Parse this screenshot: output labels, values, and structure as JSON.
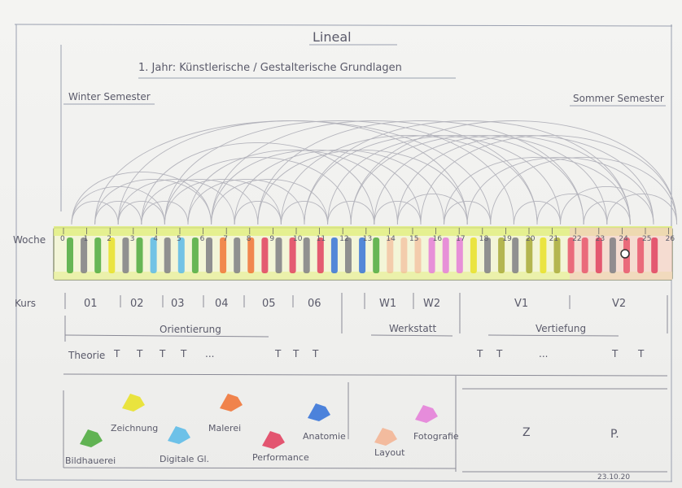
{
  "title": "Lineal",
  "subtitle": "1. Jahr:  Künstlerische / Gestalterische Grundlagen",
  "winter_label": "Winter Semester",
  "summer_label": "Sommer Semester",
  "row_labels": {
    "woche": "Woche",
    "kurs": "Kurs"
  },
  "weeks": [
    "0",
    "1",
    "2",
    "3",
    "4",
    "5",
    "6",
    "7",
    "8",
    "9",
    "10",
    "11",
    "12",
    "13",
    "14",
    "15",
    "16",
    "17",
    "18",
    "19",
    "20",
    "21",
    "22",
    "23",
    "24",
    "25",
    "26"
  ],
  "courses": [
    "01",
    "02",
    "03",
    "04",
    "05",
    "06",
    "W1",
    "W2",
    "V1",
    "V2"
  ],
  "phases": [
    "Orientierung",
    "Werkstatt",
    "Vertiefung"
  ],
  "theorie": {
    "label": "Theorie",
    "marks": [
      "T",
      "T",
      "T",
      "T",
      "...",
      "T",
      "T",
      "T",
      "T",
      "T",
      "...",
      "T",
      "T"
    ]
  },
  "legend": [
    {
      "label": "Zeichnung",
      "color": "#e8e020"
    },
    {
      "label": "Malerei",
      "color": "#f07030"
    },
    {
      "label": "Anatomie",
      "color": "#2f6fd8"
    },
    {
      "label": "Fotografie",
      "color": "#e47ad8"
    },
    {
      "label": "Bildhauerei",
      "color": "#48a838"
    },
    {
      "label": "Digitale Gl.",
      "color": "#56b8e8"
    },
    {
      "label": "Performance",
      "color": "#e03a5a"
    },
    {
      "label": "Layout",
      "color": "#f3b190"
    }
  ],
  "extra_letters": [
    "Z",
    "P."
  ],
  "date": "23.10.20"
}
